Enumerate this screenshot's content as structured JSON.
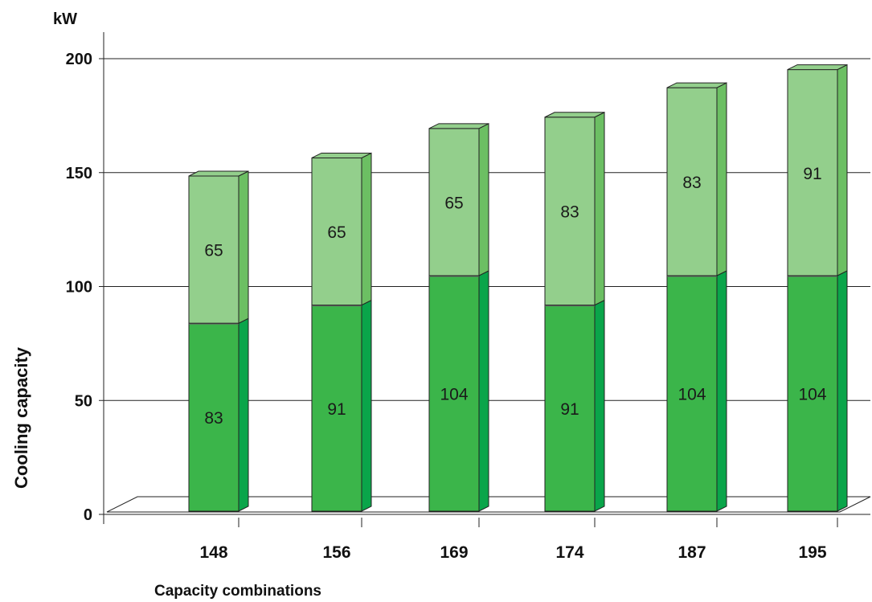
{
  "chart_data": {
    "type": "bar",
    "stacked": true,
    "title": "",
    "unit": "kW",
    "ylabel": "Cooling capacity",
    "xlabel": "Capacity combinations",
    "ylim": [
      0,
      200
    ],
    "yticks": [
      0,
      50,
      100,
      150,
      200
    ],
    "grid": true,
    "categories": [
      "148",
      "156",
      "169",
      "174",
      "187",
      "195"
    ],
    "series": [
      {
        "values": [
          83,
          91,
          104,
          91,
          104,
          104
        ],
        "color": "#3bb54a"
      },
      {
        "values": [
          65,
          65,
          65,
          83,
          83,
          91
        ],
        "color": "#93cf8c"
      }
    ]
  }
}
